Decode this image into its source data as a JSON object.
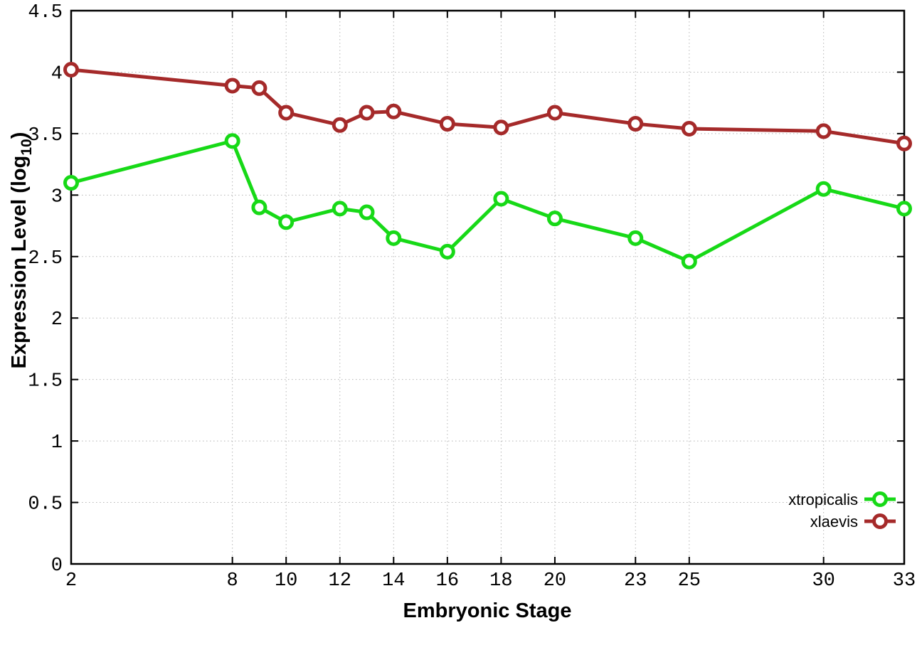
{
  "chart_data": {
    "type": "line",
    "title": "",
    "xlabel": "Embryonic Stage",
    "ylabel": "Expression Level (log10)",
    "ylabel_parts": {
      "main": "Expression Level (log",
      "sub": "10",
      "close": ")"
    },
    "xlim": [
      2,
      33
    ],
    "ylim": [
      0,
      4.5
    ],
    "grid": true,
    "legend_position": "bottom-right",
    "x": [
      2,
      8,
      9,
      10,
      12,
      13,
      14,
      16,
      18,
      20,
      23,
      25,
      30,
      33
    ],
    "xticks": [
      {
        "v": 2,
        "label": "2"
      },
      {
        "v": 8,
        "label": "8"
      },
      {
        "v": 10,
        "label": "10"
      },
      {
        "v": 12,
        "label": "12"
      },
      {
        "v": 14,
        "label": "14"
      },
      {
        "v": 16,
        "label": "16"
      },
      {
        "v": 18,
        "label": "18"
      },
      {
        "v": 20,
        "label": "20"
      },
      {
        "v": 23,
        "label": "23"
      },
      {
        "v": 25,
        "label": "25"
      },
      {
        "v": 30,
        "label": "30"
      },
      {
        "v": 33,
        "label": "33"
      }
    ],
    "yticks": [
      {
        "v": 0,
        "label": "0"
      },
      {
        "v": 0.5,
        "label": "0.5"
      },
      {
        "v": 1,
        "label": "1"
      },
      {
        "v": 1.5,
        "label": "1.5"
      },
      {
        "v": 2,
        "label": "2"
      },
      {
        "v": 2.5,
        "label": "2.5"
      },
      {
        "v": 3,
        "label": "3"
      },
      {
        "v": 3.5,
        "label": "3.5"
      },
      {
        "v": 4,
        "label": "4"
      },
      {
        "v": 4.5,
        "label": "4.5"
      }
    ],
    "series": [
      {
        "name": "xtropicalis",
        "color": "#17d917",
        "values": [
          3.1,
          3.44,
          2.9,
          2.78,
          2.89,
          2.86,
          2.65,
          2.54,
          2.97,
          2.81,
          2.65,
          2.46,
          3.05,
          2.89
        ]
      },
      {
        "name": "xlaevis",
        "color": "#a52a2a",
        "values": [
          4.02,
          3.89,
          3.87,
          3.67,
          3.57,
          3.67,
          3.68,
          3.58,
          3.55,
          3.67,
          3.58,
          3.54,
          3.52,
          3.42
        ]
      }
    ],
    "colors": {
      "grid": "#b5b5b5",
      "axis": "#000000",
      "background": "#ffffff"
    }
  }
}
